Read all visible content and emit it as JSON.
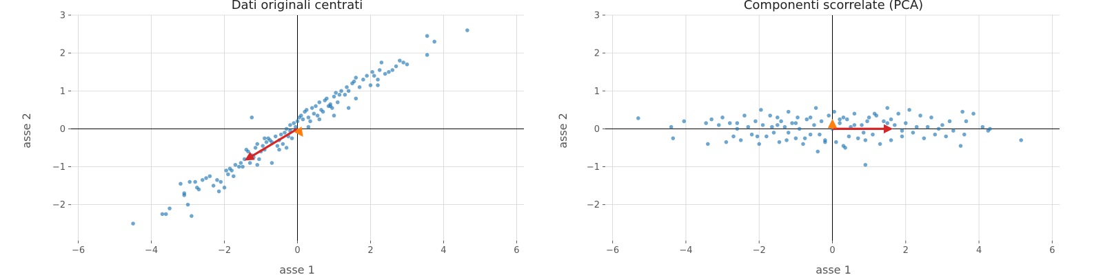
{
  "chart_data": [
    {
      "type": "scatter",
      "title": "Dati originali centrati",
      "xlabel": "asse 1",
      "ylabel": "asse 2",
      "xlim": [
        -6.2,
        6.2
      ],
      "ylim": [
        -2.95,
        3.0
      ],
      "xticks": [
        -6,
        -4,
        -2,
        0,
        2,
        4,
        6
      ],
      "yticks": [
        -2,
        -1,
        0,
        1,
        2,
        3
      ],
      "xtick_labels": [
        "−6",
        "−4",
        "−2",
        "0",
        "2",
        "4",
        "6"
      ],
      "ytick_labels": [
        "−2",
        "−1",
        "0",
        "1",
        "2",
        "3"
      ],
      "grid": true,
      "zero_lines": true,
      "point_color": "#1f77b4",
      "points": {
        "x": [
          -4.5,
          -3.6,
          -3.7,
          -3.5,
          -3.2,
          -3.1,
          -3.1,
          -3.0,
          -2.95,
          -2.9,
          -2.8,
          -2.75,
          -2.7,
          -2.6,
          -2.5,
          -2.4,
          -2.3,
          -2.2,
          -2.15,
          -2.1,
          -2.0,
          -1.9,
          -1.85,
          -1.8,
          -1.75,
          -1.7,
          -1.6,
          -1.55,
          -1.5,
          -1.45,
          -1.4,
          -1.35,
          -1.3,
          -1.25,
          -1.2,
          -1.15,
          -1.1,
          -1.05,
          -1.0,
          -0.95,
          -0.9,
          -0.85,
          -0.8,
          -0.75,
          -0.7,
          -0.6,
          -0.55,
          -0.5,
          -0.45,
          -0.4,
          -0.35,
          -0.3,
          -0.25,
          -0.2,
          -0.15,
          -0.1,
          -0.05,
          0.0,
          0.05,
          0.1,
          0.15,
          0.2,
          0.25,
          0.3,
          0.35,
          0.4,
          0.45,
          0.5,
          0.55,
          0.6,
          0.65,
          0.7,
          0.75,
          0.8,
          0.85,
          0.9,
          0.95,
          1.0,
          1.05,
          1.1,
          1.15,
          1.2,
          1.3,
          1.35,
          1.4,
          1.5,
          1.55,
          1.6,
          1.7,
          1.8,
          1.9,
          2.0,
          2.05,
          2.1,
          2.2,
          2.25,
          2.3,
          2.4,
          2.5,
          2.6,
          2.7,
          2.8,
          2.9,
          3.0,
          3.55,
          3.55,
          3.75,
          4.65,
          -1.25,
          -0.7,
          -0.9,
          -0.5,
          -0.2,
          0.6,
          0.9,
          1.4,
          2.2,
          -1.95,
          -1.1,
          0.3,
          1.0,
          1.6,
          -0.3
        ],
        "y": [
          -2.5,
          -2.25,
          -2.25,
          -2.1,
          -1.45,
          -1.7,
          -1.75,
          -2.0,
          -1.4,
          -2.3,
          -1.4,
          -1.55,
          -1.6,
          -1.35,
          -1.3,
          -1.25,
          -1.5,
          -1.35,
          -1.65,
          -1.4,
          -1.55,
          -1.2,
          -1.05,
          -1.1,
          -1.25,
          -0.95,
          -1.0,
          -0.9,
          -1.0,
          -0.8,
          -0.55,
          -0.6,
          -0.9,
          -0.7,
          -0.75,
          -0.5,
          -0.95,
          -0.8,
          -0.6,
          -0.45,
          -0.55,
          -0.35,
          -0.25,
          -0.3,
          -0.35,
          -0.2,
          -0.45,
          -0.3,
          -0.15,
          -0.4,
          -0.1,
          0.0,
          -0.2,
          0.1,
          -0.25,
          0.15,
          0.05,
          0.2,
          0.3,
          0.35,
          0.25,
          0.45,
          0.5,
          0.3,
          0.2,
          0.55,
          0.4,
          0.6,
          0.35,
          0.7,
          0.5,
          0.45,
          0.75,
          0.8,
          0.6,
          0.65,
          0.55,
          0.85,
          0.95,
          0.7,
          0.9,
          1.0,
          0.9,
          1.1,
          1.0,
          1.2,
          1.25,
          1.35,
          1.1,
          1.3,
          1.4,
          1.15,
          1.5,
          1.4,
          1.3,
          1.55,
          1.75,
          1.45,
          1.5,
          1.55,
          1.65,
          1.8,
          1.75,
          1.7,
          2.45,
          1.95,
          2.3,
          2.6,
          0.3,
          -0.9,
          -0.25,
          -0.55,
          -0.05,
          0.25,
          0.6,
          0.55,
          1.15,
          -1.1,
          -0.4,
          0.05,
          0.35,
          0.8,
          -0.5
        ]
      },
      "vectors": [
        {
          "dx": -1.42,
          "dy": -0.82,
          "color": "#d62728"
        },
        {
          "dx": 0.08,
          "dy": -0.11,
          "color": "#ff7f0e"
        }
      ]
    },
    {
      "type": "scatter",
      "title": "Componenti scorrelate (PCA)",
      "xlabel": "asse 1",
      "ylabel": "asse 2",
      "xlim": [
        -6.2,
        6.2
      ],
      "ylim": [
        -2.95,
        3.0
      ],
      "xticks": [
        -6,
        -4,
        -2,
        0,
        2,
        4,
        6
      ],
      "yticks": [
        -2,
        -1,
        0,
        1,
        2,
        3
      ],
      "xtick_labels": [
        "−6",
        "−4",
        "−2",
        "0",
        "2",
        "4",
        "6"
      ],
      "ytick_labels": [
        "−2",
        "−1",
        "0",
        "1",
        "2",
        "3"
      ],
      "grid": true,
      "zero_lines": true,
      "point_color": "#1f77b4",
      "points": {
        "x": [
          -5.3,
          -4.4,
          -4.35,
          -4.05,
          -3.45,
          -3.4,
          -3.3,
          -3.1,
          -3.0,
          -2.9,
          -2.8,
          -2.7,
          -2.6,
          -2.5,
          -2.4,
          -2.3,
          -2.2,
          -2.1,
          -2.0,
          -1.95,
          -1.9,
          -1.8,
          -1.7,
          -1.6,
          -1.5,
          -1.45,
          -1.4,
          -1.3,
          -1.25,
          -1.2,
          -1.1,
          -1.0,
          -0.95,
          -0.9,
          -0.8,
          -0.7,
          -0.6,
          -0.5,
          -0.45,
          -0.4,
          -0.3,
          -0.2,
          -0.1,
          0.0,
          0.05,
          0.1,
          0.2,
          0.3,
          0.35,
          0.4,
          0.5,
          0.6,
          0.7,
          0.8,
          0.9,
          1.0,
          1.1,
          1.2,
          1.3,
          1.4,
          1.5,
          1.6,
          1.7,
          1.8,
          1.9,
          2.0,
          2.1,
          2.2,
          2.4,
          2.5,
          2.6,
          2.7,
          2.8,
          3.0,
          3.1,
          3.2,
          3.3,
          3.5,
          3.55,
          3.6,
          3.65,
          3.85,
          4.1,
          4.25,
          4.3,
          5.15,
          -2.05,
          -1.5,
          -1.0,
          -0.35,
          0.2,
          0.9,
          1.5,
          2.3,
          -1.2,
          -0.6,
          0.45,
          1.15,
          1.9,
          -0.75,
          0.6,
          -2.6,
          2.9,
          0.85,
          -1.65,
          0.3,
          1.6,
          -0.2,
          0.95
        ],
        "y": [
          0.28,
          0.05,
          -0.25,
          0.2,
          0.15,
          -0.4,
          0.25,
          0.1,
          0.3,
          -0.35,
          0.15,
          -0.2,
          0.0,
          -0.3,
          0.35,
          0.05,
          -0.15,
          0.2,
          -0.4,
          0.5,
          0.1,
          -0.2,
          0.35,
          -0.1,
          0.3,
          -0.35,
          0.2,
          0.05,
          -0.3,
          0.45,
          0.15,
          -0.25,
          0.3,
          0.0,
          -0.4,
          0.25,
          -0.15,
          0.1,
          0.55,
          -0.6,
          0.2,
          -0.3,
          0.35,
          0.0,
          0.45,
          -0.35,
          0.15,
          0.3,
          -0.5,
          0.25,
          0.05,
          0.4,
          -0.25,
          0.1,
          -0.95,
          0.3,
          -0.15,
          0.35,
          -0.4,
          0.2,
          0.55,
          -0.3,
          0.1,
          0.4,
          -0.2,
          0.15,
          0.5,
          -0.1,
          0.35,
          -0.25,
          0.05,
          0.3,
          -0.15,
          0.1,
          -0.2,
          0.2,
          -0.05,
          -0.45,
          0.45,
          -0.15,
          0.2,
          0.4,
          0.05,
          -0.05,
          0.0,
          -0.3,
          -0.2,
          0.1,
          0.15,
          -0.15,
          0.25,
          -0.3,
          0.15,
          0.05,
          -0.1,
          0.3,
          -0.2,
          0.4,
          -0.05,
          -0.25,
          0.1,
          0.15,
          0.0,
          -0.1,
          0.05,
          -0.45,
          0.25,
          -0.35,
          0.2
        ]
      },
      "vectors": [
        {
          "dx": 1.62,
          "dy": 0.0,
          "color": "#d62728"
        },
        {
          "dx": 0.0,
          "dy": 0.14,
          "color": "#ff7f0e"
        }
      ]
    }
  ]
}
